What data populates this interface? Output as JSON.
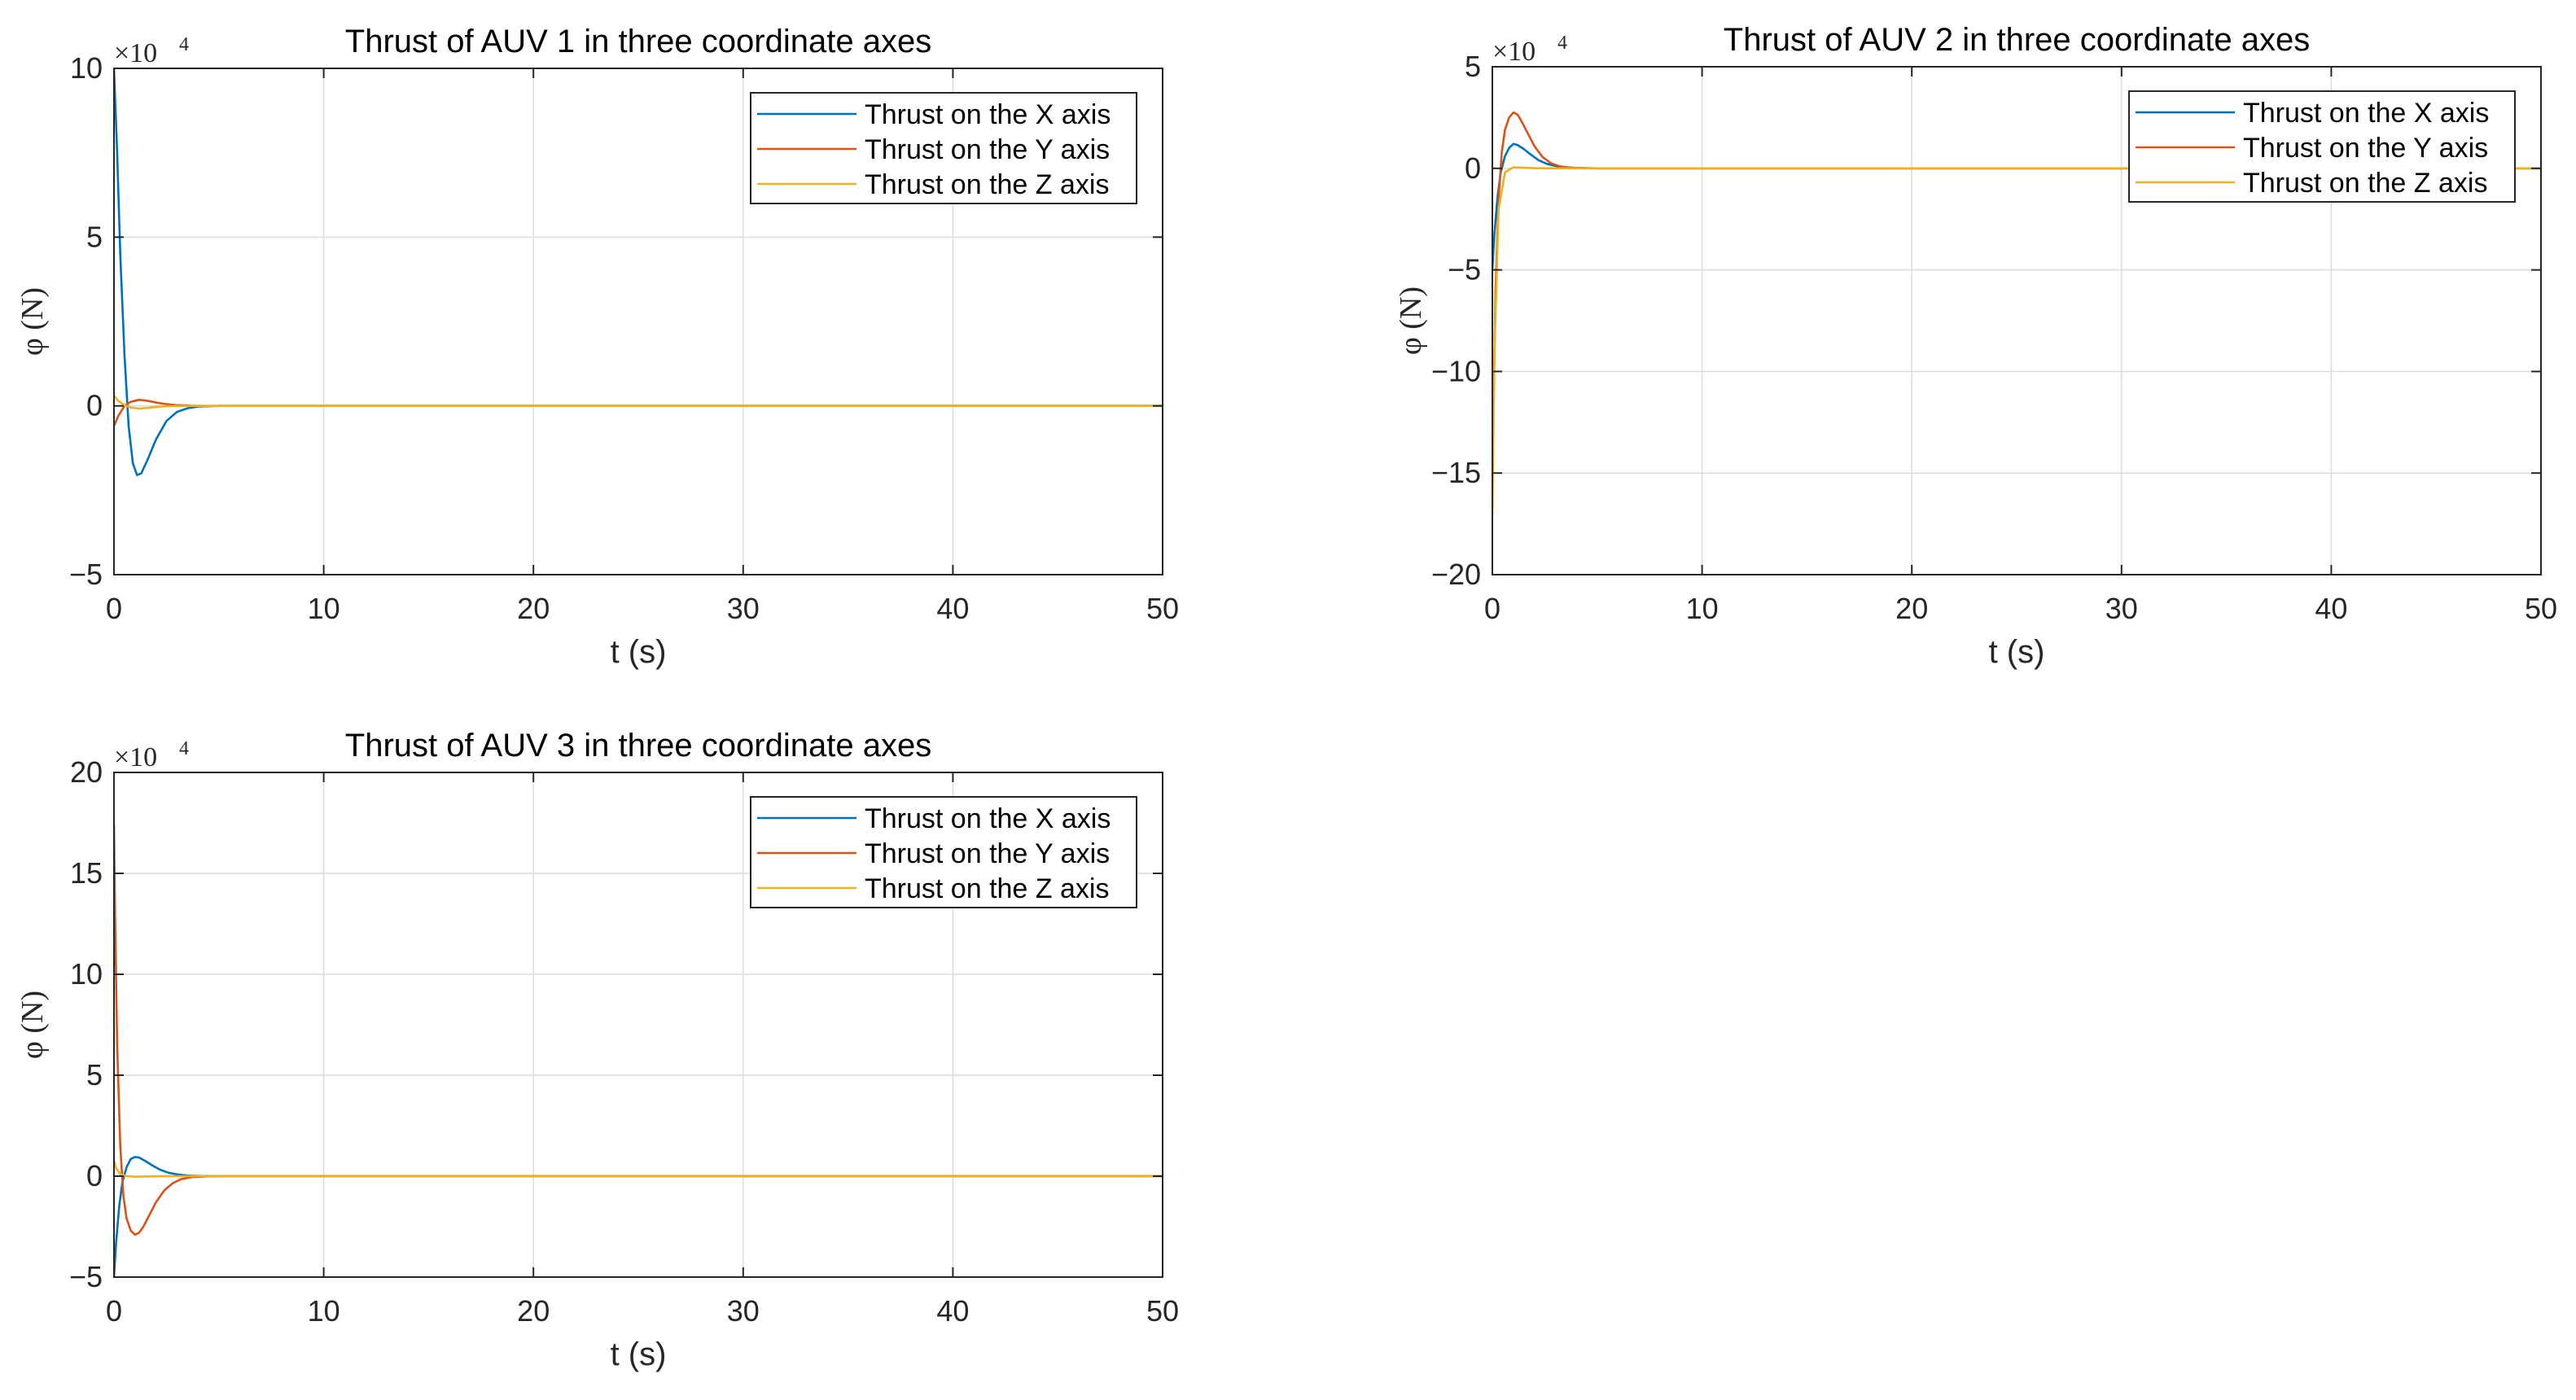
{
  "colors": {
    "series": [
      "#0072BD",
      "#D95319",
      "#EDB120"
    ],
    "axes": "#262626",
    "grid": "#dcdcdc"
  },
  "chart_data": [
    {
      "type": "line",
      "title": "Thrust of AUV 1 in three coordinate axes",
      "xlabel": "t (s)",
      "ylabel": "φ (N)",
      "y_multiplier": "×10",
      "y_multiplier_exp": "4",
      "xlim": [
        0,
        50
      ],
      "ylim": [
        -5,
        10
      ],
      "xticks": [
        0,
        10,
        20,
        30,
        40,
        50
      ],
      "yticks": [
        -5,
        0,
        5,
        10
      ],
      "grid": true,
      "legend": "top-right",
      "series": [
        {
          "name": "Thrust on the X axis",
          "x": [
            0,
            0.15,
            0.3,
            0.5,
            0.7,
            0.9,
            1.1,
            1.3,
            1.6,
            2.0,
            2.5,
            3.0,
            3.5,
            4.0,
            5.0,
            6.0,
            50
          ],
          "y": [
            10.0,
            7.5,
            4.5,
            1.5,
            -0.6,
            -1.7,
            -2.05,
            -2.0,
            -1.6,
            -1.0,
            -0.45,
            -0.18,
            -0.07,
            -0.02,
            0.0,
            0.0,
            0.0
          ]
        },
        {
          "name": "Thrust on the Y axis",
          "x": [
            0,
            0.2,
            0.5,
            0.8,
            1.2,
            1.6,
            2.0,
            2.5,
            3.0,
            4.0,
            50
          ],
          "y": [
            -0.6,
            -0.3,
            0.0,
            0.12,
            0.18,
            0.15,
            0.1,
            0.05,
            0.02,
            0.0,
            0.0
          ]
        },
        {
          "name": "Thrust on the Z axis",
          "x": [
            0,
            0.2,
            0.5,
            0.8,
            1.2,
            1.6,
            2.0,
            2.5,
            3.5,
            50
          ],
          "y": [
            0.3,
            0.15,
            0.02,
            -0.05,
            -0.08,
            -0.06,
            -0.03,
            -0.01,
            0.0,
            0.0
          ]
        }
      ]
    },
    {
      "type": "line",
      "title": "Thrust of AUV 2 in three coordinate axes",
      "xlabel": "t (s)",
      "ylabel": "φ (N)",
      "y_multiplier": "×10",
      "y_multiplier_exp": "4",
      "xlim": [
        0,
        50
      ],
      "ylim": [
        -20,
        5
      ],
      "xticks": [
        0,
        10,
        20,
        30,
        40,
        50
      ],
      "yticks": [
        -20,
        -15,
        -10,
        -5,
        0,
        5
      ],
      "grid": true,
      "legend": "top-right",
      "series": [
        {
          "name": "Thrust on the X axis",
          "x": [
            0,
            0.1,
            0.25,
            0.4,
            0.6,
            0.8,
            1.0,
            1.2,
            1.5,
            1.8,
            2.2,
            2.6,
            3.0,
            3.5,
            4.0,
            5.0,
            50
          ],
          "y": [
            -5.0,
            -3.2,
            -1.4,
            -0.2,
            0.6,
            1.0,
            1.2,
            1.15,
            0.95,
            0.7,
            0.4,
            0.22,
            0.12,
            0.05,
            0.02,
            0.0,
            0.0
          ]
        },
        {
          "name": "Thrust on the Y axis",
          "x": [
            0,
            0.05,
            0.15,
            0.3,
            0.45,
            0.6,
            0.8,
            1.0,
            1.2,
            1.4,
            1.7,
            2.0,
            2.4,
            2.8,
            3.2,
            3.7,
            4.5,
            50
          ],
          "y": [
            -16.0,
            -12.0,
            -6.0,
            -1.5,
            0.8,
            1.9,
            2.5,
            2.75,
            2.65,
            2.3,
            1.7,
            1.1,
            0.55,
            0.25,
            0.1,
            0.03,
            0.0,
            0.0
          ]
        },
        {
          "name": "Thrust on the Z axis",
          "x": [
            0,
            0.1,
            0.3,
            0.6,
            1.0,
            1.5,
            2.0,
            3.0,
            50
          ],
          "y": [
            -17.0,
            -9.0,
            -2.0,
            -0.2,
            0.05,
            0.03,
            0.01,
            0.0,
            0.0
          ]
        }
      ]
    },
    {
      "type": "line",
      "title": "Thrust of AUV 3 in three coordinate axes",
      "xlabel": "t (s)",
      "ylabel": "φ (N)",
      "y_multiplier": "×10",
      "y_multiplier_exp": "4",
      "xlim": [
        0,
        50
      ],
      "ylim": [
        -5,
        20
      ],
      "xticks": [
        0,
        10,
        20,
        30,
        40,
        50
      ],
      "yticks": [
        -5,
        0,
        5,
        10,
        15,
        20
      ],
      "grid": true,
      "legend": "top-right",
      "series": [
        {
          "name": "Thrust on the X axis",
          "x": [
            0,
            0.1,
            0.25,
            0.4,
            0.6,
            0.8,
            1.0,
            1.2,
            1.5,
            1.8,
            2.2,
            2.6,
            3.0,
            3.5,
            4.0,
            5.0,
            50
          ],
          "y": [
            -5.0,
            -3.3,
            -1.5,
            -0.3,
            0.45,
            0.85,
            0.95,
            0.92,
            0.75,
            0.55,
            0.32,
            0.17,
            0.09,
            0.03,
            0.01,
            0.0,
            0.0
          ]
        },
        {
          "name": "Thrust on the Y axis",
          "x": [
            0,
            0.05,
            0.15,
            0.3,
            0.45,
            0.6,
            0.8,
            1.0,
            1.2,
            1.4,
            1.7,
            2.0,
            2.4,
            2.8,
            3.2,
            3.7,
            4.5,
            5.5,
            50
          ],
          "y": [
            17.5,
            13.0,
            6.5,
            1.5,
            -1.0,
            -2.1,
            -2.7,
            -2.9,
            -2.8,
            -2.5,
            -1.9,
            -1.3,
            -0.7,
            -0.35,
            -0.15,
            -0.05,
            -0.01,
            0.0,
            0.0
          ]
        },
        {
          "name": "Thrust on the Z axis",
          "x": [
            0,
            0.1,
            0.3,
            0.6,
            1.0,
            1.5,
            2.0,
            3.0,
            50
          ],
          "y": [
            0.8,
            0.4,
            0.1,
            0.0,
            -0.03,
            -0.02,
            -0.01,
            0.0,
            0.0
          ]
        }
      ]
    }
  ]
}
